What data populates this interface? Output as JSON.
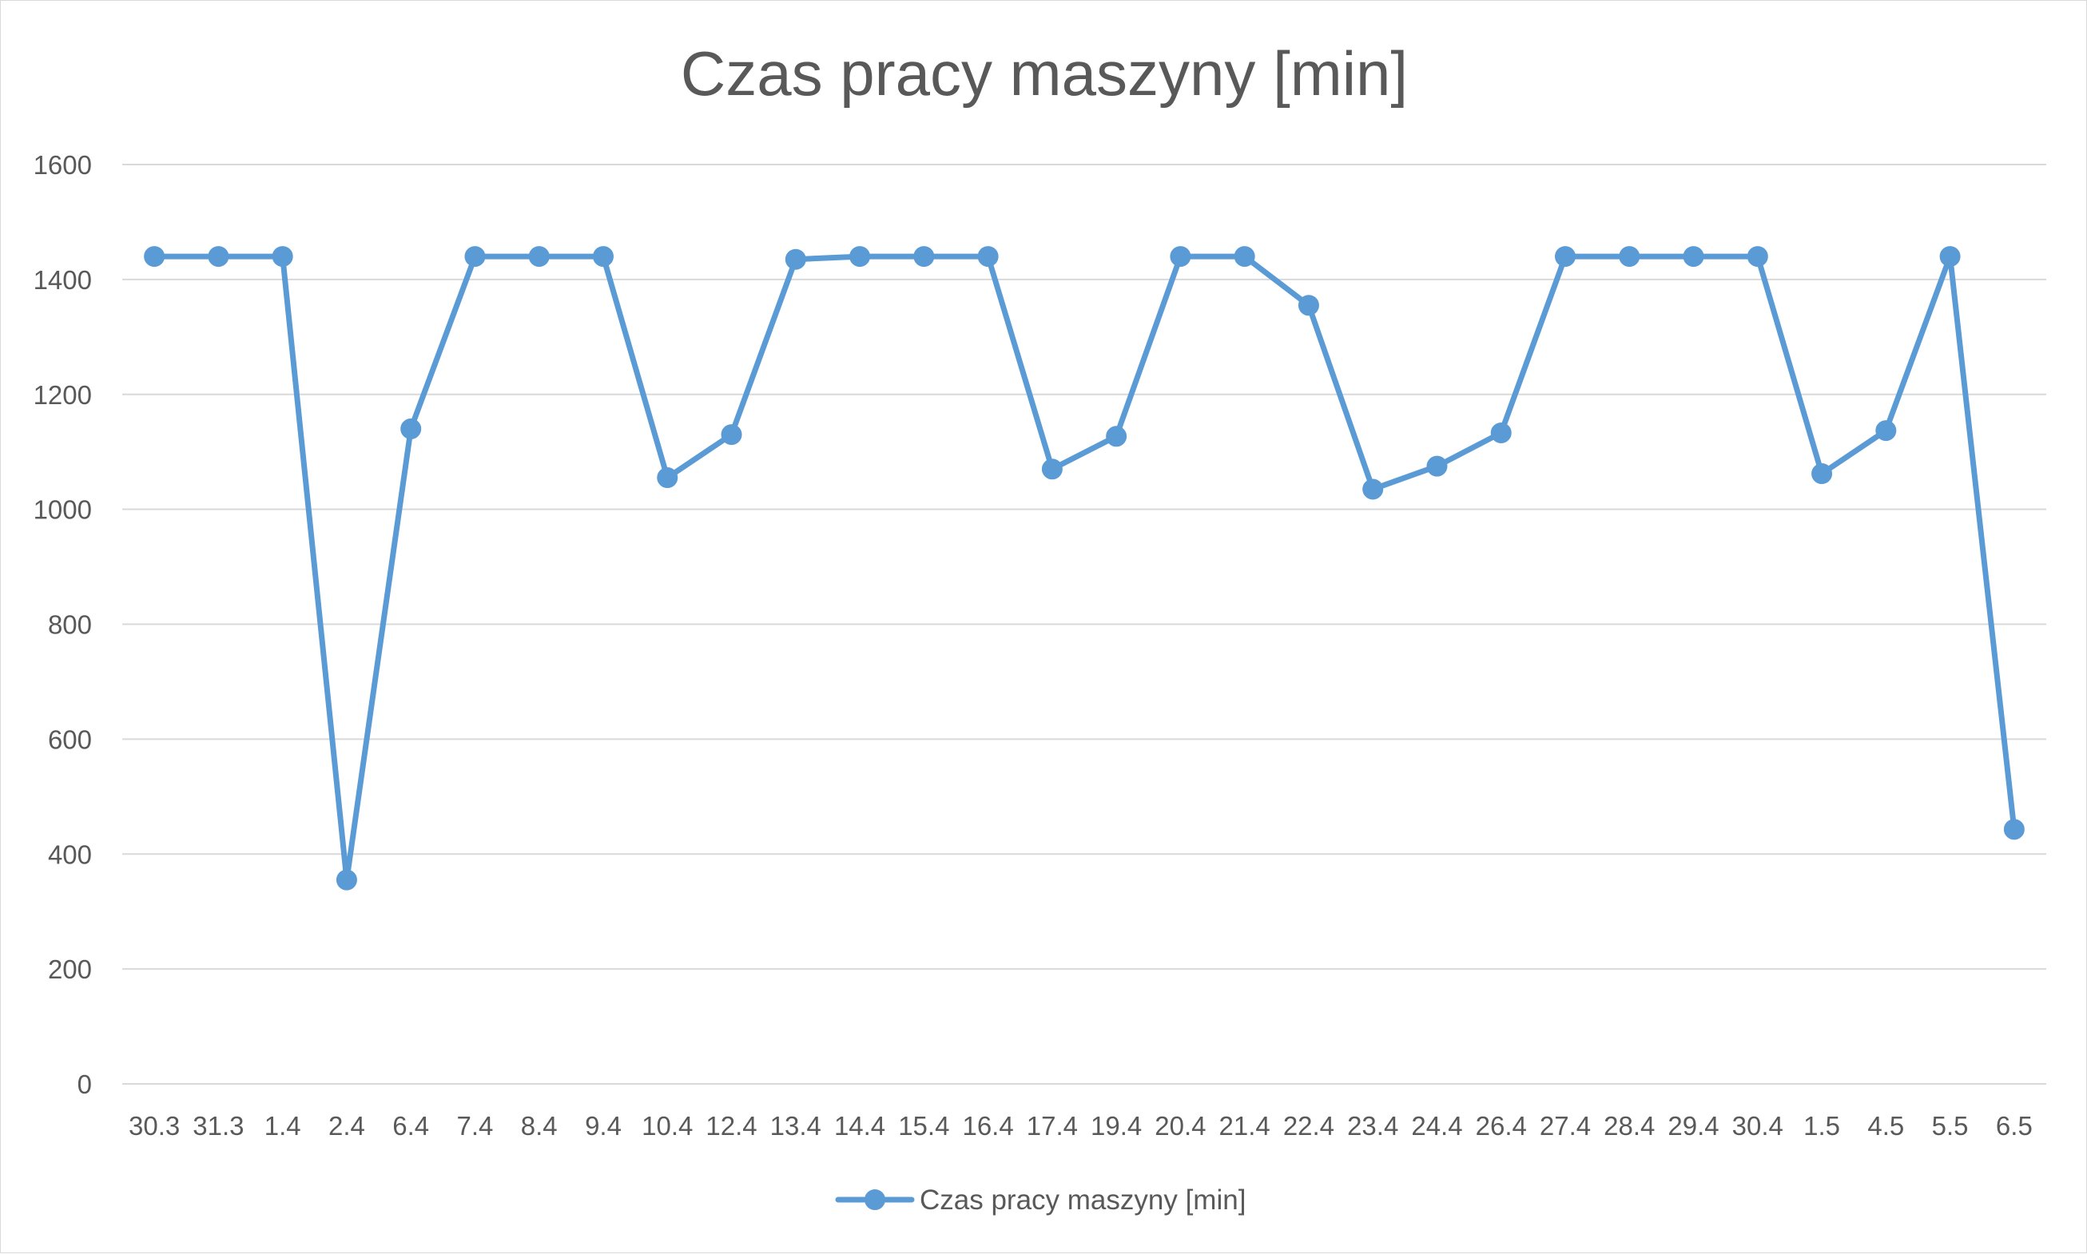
{
  "chart_data": {
    "type": "line",
    "title": "Czas pracy maszyny [min]",
    "categories": [
      "30.3",
      "31.3",
      "1.4",
      "2.4",
      "6.4",
      "7.4",
      "8.4",
      "9.4",
      "10.4",
      "12.4",
      "13.4",
      "14.4",
      "15.4",
      "16.4",
      "17.4",
      "19.4",
      "20.4",
      "21.4",
      "22.4",
      "23.4",
      "24.4",
      "26.4",
      "27.4",
      "28.4",
      "29.4",
      "30.4",
      "1.5",
      "4.5",
      "5.5",
      "6.5"
    ],
    "series": [
      {
        "name": "Czas pracy maszyny [min]",
        "values": [
          1440,
          1440,
          1440,
          355,
          1140,
          1440,
          1440,
          1440,
          1055,
          1130,
          1435,
          1440,
          1440,
          1440,
          1070,
          1127,
          1440,
          1440,
          1355,
          1035,
          1075,
          1133,
          1440,
          1440,
          1440,
          1440,
          1062,
          1137,
          1440,
          443
        ],
        "color": "#5b9bd5"
      }
    ],
    "ylim": [
      0,
      1600
    ],
    "yticks": [
      "0",
      "200",
      "400",
      "600",
      "800",
      "1000",
      "1200",
      "1400",
      "1600"
    ],
    "xlabel": "",
    "ylabel": "",
    "grid": true,
    "legend_position": "bottom"
  }
}
